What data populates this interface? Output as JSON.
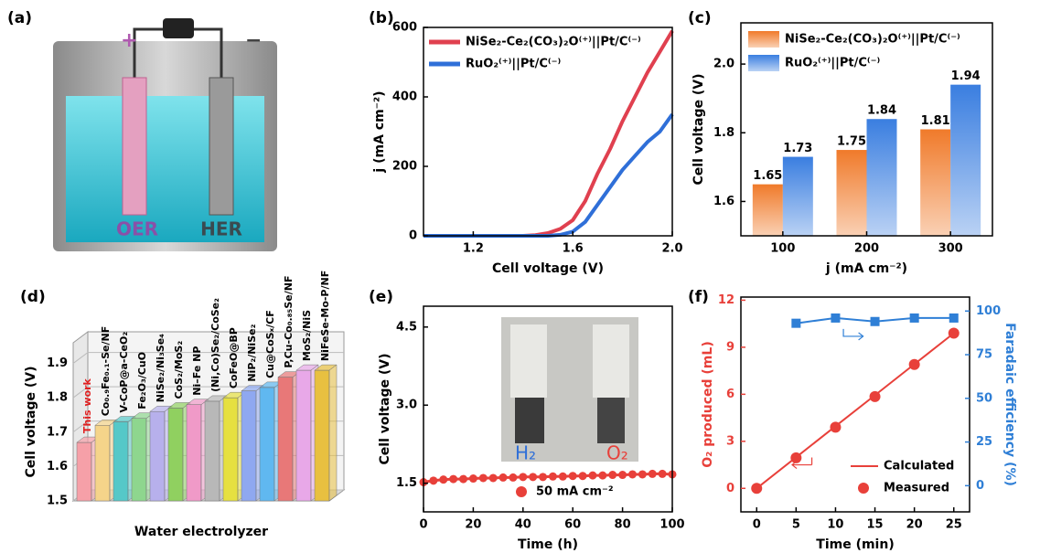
{
  "illustration": {
    "label": "(a)",
    "plus": "+",
    "minus": "−",
    "oer": "OER",
    "her": "HER"
  },
  "chart_data": [
    {
      "label": "(b)",
      "type": "line",
      "x_label": "Cell voltage (V)",
      "y_label": "j (mA cm⁻²)",
      "x": [
        1.0,
        1.2,
        1.4,
        1.45,
        1.5,
        1.55,
        1.6,
        1.65,
        1.7,
        1.75,
        1.8,
        1.85,
        1.9,
        1.95,
        2.0
      ],
      "series": [
        {
          "name": "NiSe₂-Ce₂(CO₃)₂O⁽⁺⁾||Pt/C⁽⁻⁾",
          "color": "#e0404f",
          "values": [
            0,
            0,
            0,
            2,
            8,
            20,
            45,
            100,
            180,
            250,
            330,
            400,
            470,
            530,
            590
          ]
        },
        {
          "name": "RuO₂⁽⁺⁾||Pt/C⁽⁻⁾",
          "color": "#2f6fd8",
          "values": [
            0,
            0,
            0,
            0,
            0,
            3,
            12,
            40,
            90,
            140,
            190,
            230,
            270,
            300,
            350
          ]
        }
      ],
      "xlim": [
        1.0,
        2.0
      ],
      "xticks": [
        1.2,
        1.6,
        {
          "value": 2,
          "label": "2.0"
        }
      ],
      "ylim": [
        0,
        600
      ],
      "yticks": [
        0,
        200,
        400,
        600
      ],
      "legend": "upper left"
    },
    {
      "label": "(c)",
      "type": "bar",
      "x_label": "j (mA cm⁻²)",
      "y_label": "Cell voltage (V)",
      "categories": [
        "100",
        "200",
        "300"
      ],
      "series": [
        {
          "name": "NiSe₂-Ce₂(CO₃)₂O⁽⁺⁾||Pt/C⁽⁻⁾",
          "color": "#f07a2a",
          "values": [
            1.65,
            1.75,
            1.81
          ]
        },
        {
          "name": "RuO₂⁽⁺⁾||Pt/C⁽⁻⁾",
          "color": "#3a7ee0",
          "values": [
            1.73,
            1.84,
            1.94
          ]
        }
      ],
      "ylim": [
        1.5,
        2.12
      ],
      "yticks": [
        1.6,
        1.8,
        {
          "value": 2,
          "label": "2.0"
        }
      ],
      "legend": "upper left"
    },
    {
      "label": "(d)",
      "type": "bar3d",
      "x_label": "Water electrolyzer",
      "y_label": "Cell voltage (V)",
      "categories": [
        "This work",
        "Co₀.₉Fe₀.₁-Se/NF",
        "V-CoP@a-CeO₂",
        "Fe₂O₃/CuO",
        "NiSe₂/Ni₃Se₄",
        "CoS₂/MoS₂",
        "Ni–Fe NP",
        "(Ni,Co)Se₂/CoSe₂",
        "CoFeO@BP",
        "NiP₂/NiSe₂",
        "Cu@CoSₓ/CF",
        "P,Cu-Co₀.₈₅Se/NF",
        "MoS₂/NiS",
        "NiFeSe-Mo-P/NF"
      ],
      "values": [
        1.67,
        1.72,
        1.73,
        1.74,
        1.76,
        1.77,
        1.78,
        1.79,
        1.8,
        1.82,
        1.83,
        1.86,
        1.88,
        1.88
      ],
      "colors": [
        "#f6a0a8",
        "#f5d48a",
        "#55c8c8",
        "#8ed68e",
        "#b7b0ec",
        "#90d060",
        "#f09ac8",
        "#b8b8b8",
        "#e6e040",
        "#8fa8f0",
        "#60b8f0",
        "#e87878",
        "#e8a8e8",
        "#e8c040"
      ],
      "ylim": [
        1.5,
        1.96
      ],
      "yticks": [
        1.5,
        1.6,
        1.7,
        1.8,
        1.9
      ]
    },
    {
      "label": "(e)",
      "type": "scatter_line",
      "x_label": "Time (h)",
      "y_label": "Cell voltage (V)",
      "x": [
        0,
        4,
        8,
        12,
        16,
        20,
        24,
        28,
        32,
        36,
        40,
        44,
        48,
        52,
        56,
        60,
        64,
        68,
        72,
        76,
        80,
        84,
        88,
        92,
        96,
        100
      ],
      "series": [
        {
          "name": "50 mA cm⁻²",
          "color": "#e8403a",
          "values": [
            1.52,
            1.55,
            1.57,
            1.58,
            1.58,
            1.59,
            1.6,
            1.6,
            1.61,
            1.61,
            1.62,
            1.62,
            1.62,
            1.63,
            1.63,
            1.64,
            1.64,
            1.65,
            1.65,
            1.66,
            1.66,
            1.67,
            1.67,
            1.68,
            1.68,
            1.67
          ]
        }
      ],
      "xlim": [
        0,
        100
      ],
      "xticks": [
        0,
        20,
        40,
        60,
        80,
        100
      ],
      "ylim": [
        0.95,
        4.9
      ],
      "yticks": [
        1.5,
        {
          "value": 3,
          "label": "3.0"
        },
        4.5
      ],
      "annotations": [
        {
          "text": "H₂",
          "color": "#2f6fd8"
        },
        {
          "text": "O₂",
          "color": "#e8403a"
        }
      ],
      "legend": "lower right"
    },
    {
      "label": "(f)",
      "type": "dual",
      "x_label": "Time (min)",
      "y_label": "O₂ produced (mL)",
      "y2_label": "Faradaic efficiency (%)",
      "x": [
        0,
        5,
        10,
        15,
        20,
        25
      ],
      "series": [
        {
          "name": "Calculated",
          "color": "#e8403a",
          "style": "line",
          "values": [
            0,
            1.98,
            3.96,
            5.94,
            7.92,
            9.9
          ]
        },
        {
          "name": "Measured",
          "color": "#e8403a",
          "style": "marker",
          "values": [
            0,
            1.95,
            3.9,
            5.85,
            7.9,
            9.9
          ]
        },
        {
          "color": "#2f7fd6",
          "style": "line-square",
          "axis": "y2",
          "values": [
            null,
            93,
            96,
            94,
            96,
            96
          ]
        }
      ],
      "xlim": [
        -2,
        27
      ],
      "xticks": [
        0,
        5,
        10,
        15,
        20,
        25
      ],
      "ylim": [
        -1.5,
        12.2
      ],
      "yticks": [
        0,
        3,
        6,
        9,
        12
      ],
      "y2lim": [
        -15,
        108
      ],
      "y2ticks": [
        0,
        25,
        50,
        75,
        100
      ],
      "legend": "lower right"
    }
  ]
}
